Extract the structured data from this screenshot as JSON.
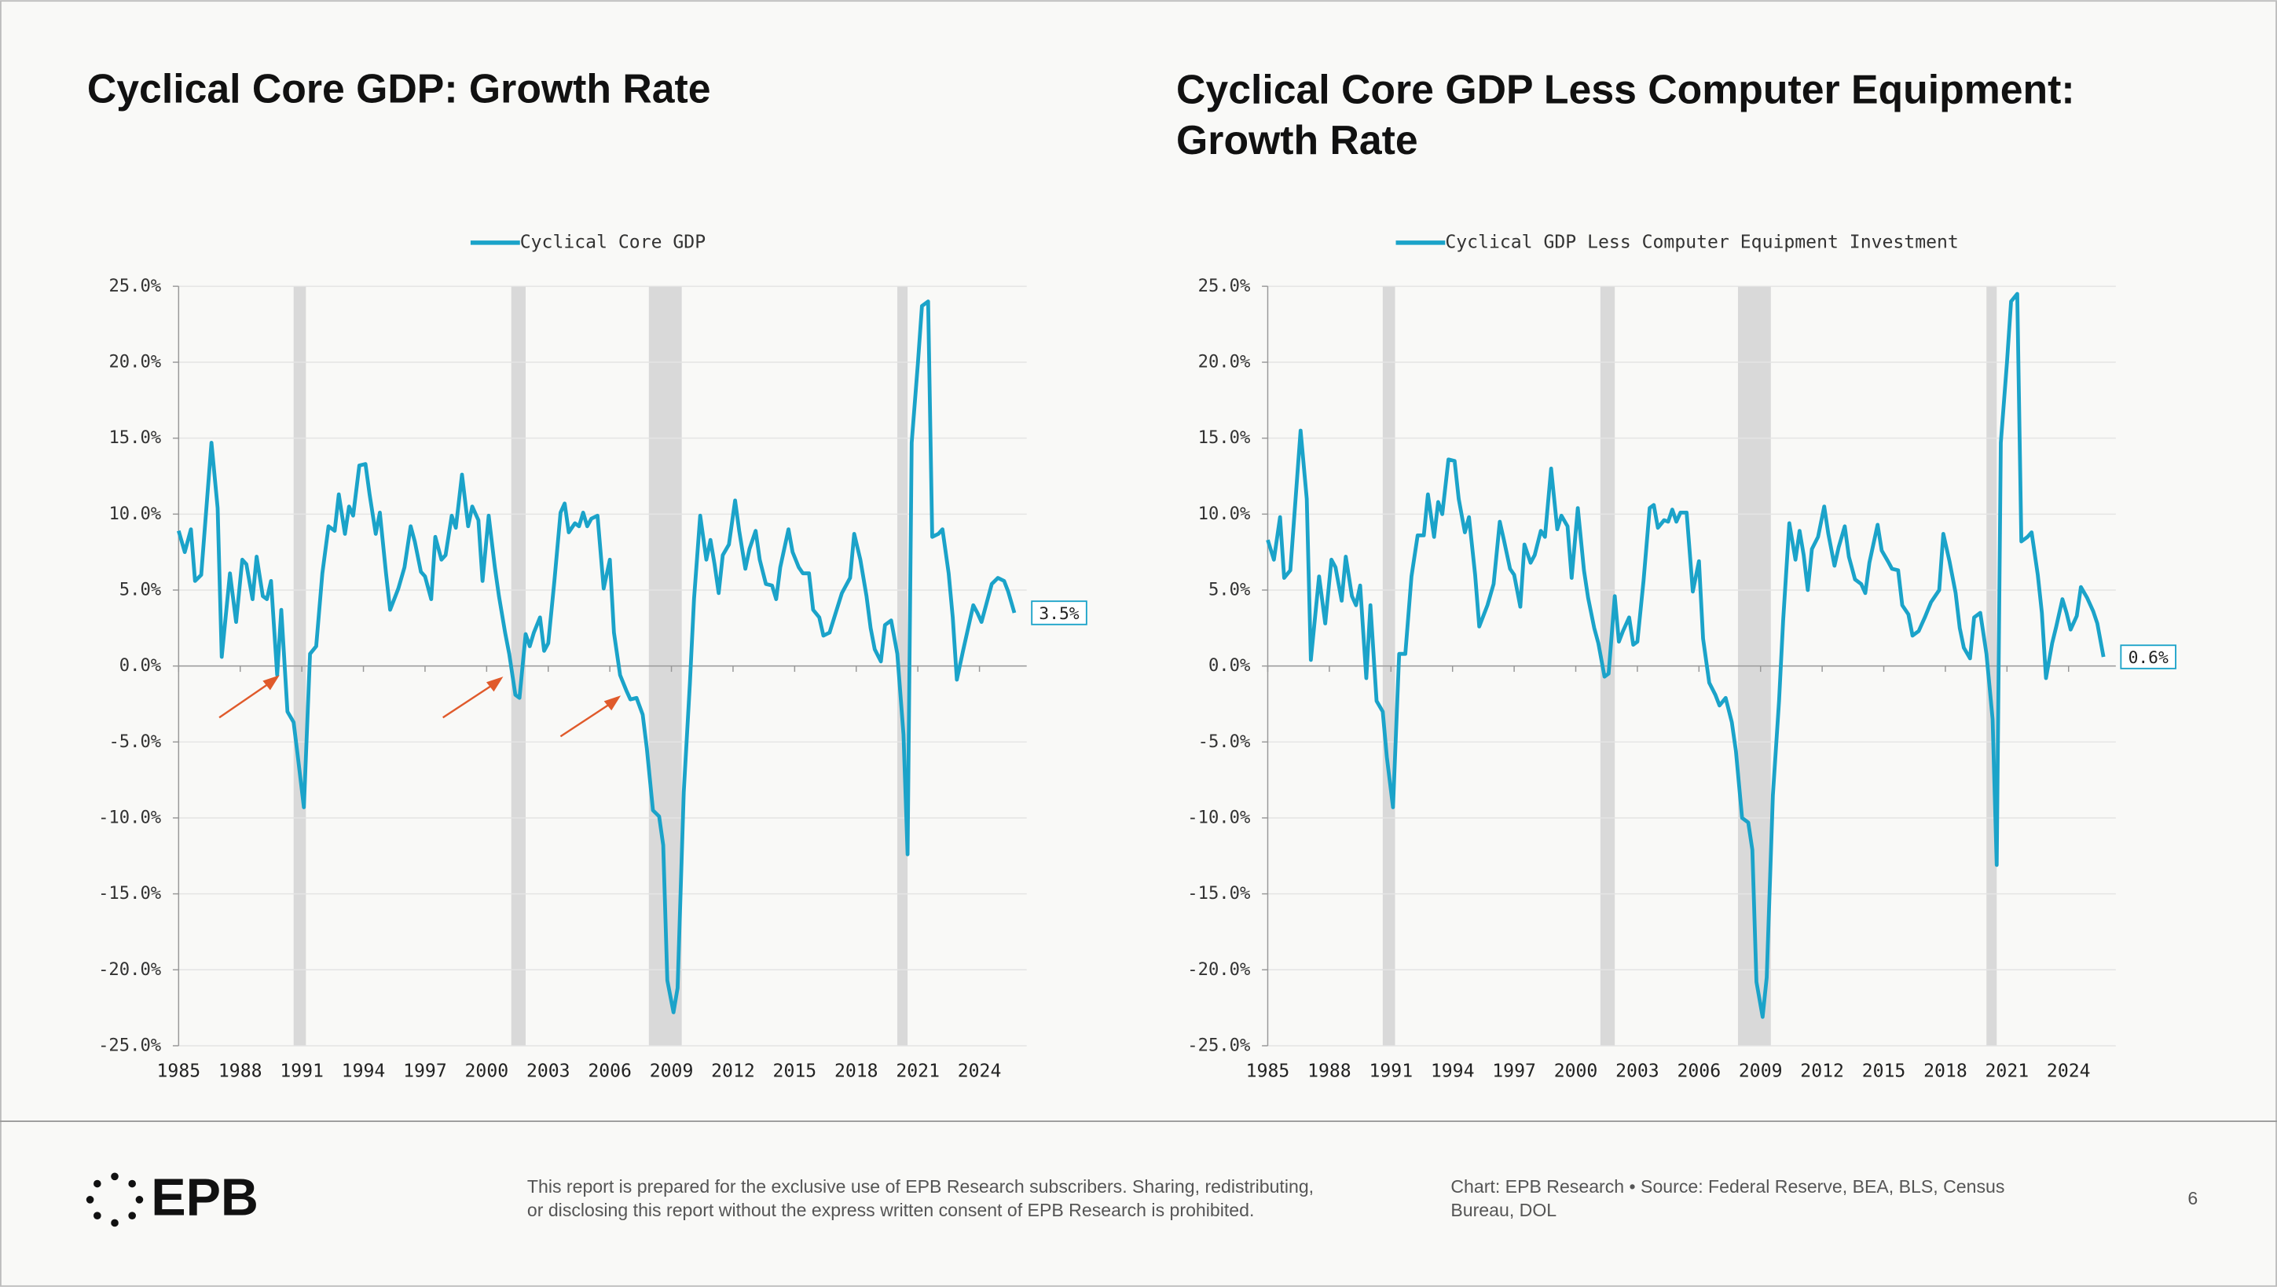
{
  "chart_data": [
    {
      "type": "line",
      "title": "Cyclical Core GDP: Growth Rate",
      "x": [
        1985.0,
        1985.3,
        1985.6,
        1985.8,
        1986.1,
        1986.6,
        1986.9,
        1987.1,
        1987.5,
        1987.8,
        1988.1,
        1988.3,
        1988.6,
        1988.8,
        1989.1,
        1989.3,
        1989.5,
        1989.8,
        1990.0,
        1990.3,
        1990.6,
        1990.8,
        1991.1,
        1991.4,
        1991.7,
        1992.0,
        1992.3,
        1992.6,
        1992.8,
        1993.1,
        1993.3,
        1993.5,
        1993.8,
        1994.1,
        1994.3,
        1994.6,
        1994.8,
        1995.1,
        1995.3,
        1995.7,
        1996.0,
        1996.3,
        1996.5,
        1996.8,
        1997.0,
        1997.3,
        1997.5,
        1997.8,
        1998.0,
        1998.3,
        1998.5,
        1998.8,
        1999.1,
        1999.3,
        1999.6,
        1999.8,
        2000.1,
        2000.4,
        2000.6,
        2000.9,
        2001.1,
        2001.4,
        2001.6,
        2001.9,
        2002.1,
        2002.3,
        2002.6,
        2002.8,
        2003.0,
        2003.3,
        2003.6,
        2003.8,
        2004.0,
        2004.3,
        2004.5,
        2004.7,
        2004.9,
        2005.1,
        2005.4,
        2005.7,
        2006.0,
        2006.2,
        2006.5,
        2006.8,
        2007.0,
        2007.3,
        2007.6,
        2007.8,
        2008.1,
        2008.4,
        2008.6,
        2008.8,
        2009.1,
        2009.3,
        2009.6,
        2009.9,
        2010.1,
        2010.4,
        2010.7,
        2010.9,
        2011.1,
        2011.3,
        2011.5,
        2011.8,
        2012.1,
        2012.3,
        2012.6,
        2012.8,
        2013.1,
        2013.3,
        2013.6,
        2013.9,
        2014.1,
        2014.3,
        2014.7,
        2014.9,
        2015.2,
        2015.4,
        2015.7,
        2015.9,
        2016.2,
        2016.4,
        2016.7,
        2017.0,
        2017.3,
        2017.7,
        2017.9,
        2018.2,
        2018.5,
        2018.7,
        2018.9,
        2019.2,
        2019.4,
        2019.7,
        2020.0,
        2020.3,
        2020.5,
        2020.7,
        2021.0,
        2021.2,
        2021.5,
        2021.7,
        2022.0,
        2022.2,
        2022.5,
        2022.7,
        2022.9,
        2023.2,
        2023.4,
        2023.7,
        2023.9,
        2024.1,
        2024.4,
        2024.6,
        2024.9,
        2025.2,
        2025.4,
        2025.7
      ],
      "series": [
        {
          "name": "Cyclical Core GDP",
          "color": "#1ba3c9",
          "end_label": "3.5%",
          "values": [
            8.9,
            7.5,
            9.0,
            5.6,
            6.0,
            14.7,
            10.4,
            0.6,
            6.1,
            2.9,
            7.0,
            6.7,
            4.4,
            7.2,
            4.6,
            4.4,
            5.6,
            -0.6,
            3.7,
            -3.0,
            -3.7,
            -5.9,
            -9.3,
            0.8,
            1.3,
            6.1,
            9.2,
            8.9,
            11.3,
            8.7,
            10.5,
            9.9,
            13.2,
            13.3,
            11.3,
            8.7,
            10.1,
            6.1,
            3.7,
            5.1,
            6.5,
            9.2,
            8.2,
            6.2,
            5.9,
            4.4,
            8.5,
            7.0,
            7.3,
            9.9,
            9.1,
            12.6,
            9.2,
            10.5,
            9.6,
            5.6,
            9.9,
            6.5,
            4.6,
            2.2,
            0.8,
            -1.9,
            -2.1,
            2.1,
            1.3,
            2.2,
            3.2,
            1.0,
            1.5,
            5.6,
            10.1,
            10.7,
            8.8,
            9.4,
            9.2,
            10.1,
            9.2,
            9.7,
            9.9,
            5.1,
            7.0,
            2.2,
            -0.6,
            -1.6,
            -2.2,
            -2.1,
            -3.2,
            -5.4,
            -9.5,
            -9.9,
            -11.8,
            -20.7,
            -22.8,
            -21.2,
            -8.3,
            -1.1,
            4.4,
            9.9,
            7.0,
            8.3,
            6.7,
            4.8,
            7.3,
            8.0,
            10.9,
            8.9,
            6.4,
            7.7,
            8.9,
            7.0,
            5.4,
            5.3,
            4.4,
            6.5,
            9.0,
            7.5,
            6.5,
            6.1,
            6.1,
            3.7,
            3.2,
            2.0,
            2.2,
            3.5,
            4.8,
            5.8,
            8.7,
            7.0,
            4.6,
            2.5,
            1.1,
            0.3,
            2.7,
            3.0,
            0.8,
            -4.5,
            -12.4,
            14.7,
            19.9,
            23.7,
            24.0,
            8.5,
            8.7,
            9.0,
            6.1,
            3.2,
            -0.9,
            1.0,
            2.2,
            4.0,
            3.5,
            2.9,
            4.4,
            5.4,
            5.8,
            5.6,
            4.9,
            3.5
          ]
        }
      ],
      "xlim": [
        1985,
        2026.3
      ],
      "xticks": [
        1985,
        1988,
        1991,
        1994,
        1997,
        2000,
        2003,
        2006,
        2009,
        2012,
        2015,
        2018,
        2021,
        2024
      ],
      "ylim": [
        -25,
        25
      ],
      "yticks": [
        {
          "value": -25,
          "label": "-25.0%"
        },
        {
          "value": -20,
          "label": "-20.0%"
        },
        {
          "value": -15,
          "label": "-15.0%"
        },
        {
          "value": -10,
          "label": "-10.0%"
        },
        {
          "value": -5,
          "label": "-5.0%"
        },
        {
          "value": 0,
          "label": "0.0%"
        },
        {
          "value": 5,
          "label": "5.0%"
        },
        {
          "value": 10,
          "label": "10.0%"
        },
        {
          "value": 15,
          "label": "15.0%"
        },
        {
          "value": 20,
          "label": "20.0%"
        },
        {
          "value": 25,
          "label": "25.0%"
        }
      ],
      "grid": true,
      "recessions": [
        [
          1990.6,
          1991.2
        ],
        [
          2001.2,
          2001.9
        ],
        [
          2007.9,
          2009.5
        ],
        [
          2020.0,
          2020.5
        ]
      ]
    },
    {
      "type": "line",
      "title": "Cyclical Core GDP Less Computer Equipment: Growth Rate",
      "x": [
        1985.0,
        1985.3,
        1985.6,
        1985.8,
        1986.1,
        1986.6,
        1986.9,
        1987.1,
        1987.5,
        1987.8,
        1988.1,
        1988.3,
        1988.6,
        1988.8,
        1989.1,
        1989.3,
        1989.5,
        1989.8,
        1990.0,
        1990.3,
        1990.6,
        1990.8,
        1991.1,
        1991.4,
        1991.7,
        1992.0,
        1992.3,
        1992.6,
        1992.8,
        1993.1,
        1993.3,
        1993.5,
        1993.8,
        1994.1,
        1994.3,
        1994.6,
        1994.8,
        1995.1,
        1995.3,
        1995.7,
        1996.0,
        1996.3,
        1996.5,
        1996.8,
        1997.0,
        1997.3,
        1997.5,
        1997.8,
        1998.0,
        1998.3,
        1998.5,
        1998.8,
        1999.1,
        1999.3,
        1999.6,
        1999.8,
        2000.1,
        2000.4,
        2000.6,
        2000.9,
        2001.1,
        2001.4,
        2001.6,
        2001.9,
        2002.1,
        2002.3,
        2002.6,
        2002.8,
        2003.0,
        2003.3,
        2003.6,
        2003.8,
        2004.0,
        2004.3,
        2004.5,
        2004.7,
        2004.9,
        2005.1,
        2005.4,
        2005.7,
        2006.0,
        2006.2,
        2006.5,
        2006.8,
        2007.0,
        2007.3,
        2007.6,
        2007.8,
        2008.1,
        2008.4,
        2008.6,
        2008.8,
        2009.1,
        2009.3,
        2009.6,
        2009.9,
        2010.1,
        2010.4,
        2010.7,
        2010.9,
        2011.1,
        2011.3,
        2011.5,
        2011.8,
        2012.1,
        2012.3,
        2012.6,
        2012.8,
        2013.1,
        2013.3,
        2013.6,
        2013.9,
        2014.1,
        2014.3,
        2014.7,
        2014.9,
        2015.2,
        2015.4,
        2015.7,
        2015.9,
        2016.2,
        2016.4,
        2016.7,
        2017.0,
        2017.3,
        2017.7,
        2017.9,
        2018.2,
        2018.5,
        2018.7,
        2018.9,
        2019.2,
        2019.4,
        2019.7,
        2020.0,
        2020.3,
        2020.5,
        2020.7,
        2021.0,
        2021.2,
        2021.5,
        2021.7,
        2022.0,
        2022.2,
        2022.5,
        2022.7,
        2022.9,
        2023.2,
        2023.4,
        2023.7,
        2023.9,
        2024.1,
        2024.4,
        2024.6,
        2024.9,
        2025.2,
        2025.4,
        2025.7
      ],
      "series": [
        {
          "name": "Cyclical GDP Less Computer Equipment Investment",
          "color": "#1ba3c9",
          "end_label": "0.6%",
          "values": [
            8.3,
            7.0,
            9.8,
            5.8,
            6.3,
            15.5,
            11.0,
            0.4,
            5.9,
            2.8,
            7.0,
            6.5,
            4.3,
            7.2,
            4.6,
            4.0,
            5.3,
            -0.8,
            4.0,
            -2.3,
            -3.0,
            -6.0,
            -9.3,
            0.8,
            0.8,
            5.9,
            8.6,
            8.6,
            11.3,
            8.5,
            10.8,
            10.0,
            13.6,
            13.5,
            11.0,
            8.8,
            9.8,
            6.0,
            2.6,
            4.0,
            5.4,
            9.5,
            8.3,
            6.4,
            6.0,
            3.9,
            8.0,
            6.8,
            7.3,
            8.9,
            8.5,
            13.0,
            9.0,
            9.9,
            9.2,
            5.8,
            10.4,
            6.3,
            4.5,
            2.5,
            1.5,
            -0.7,
            -0.5,
            4.6,
            1.6,
            2.3,
            3.2,
            1.4,
            1.6,
            5.6,
            10.4,
            10.6,
            9.1,
            9.6,
            9.5,
            10.3,
            9.5,
            10.1,
            10.1,
            4.9,
            6.9,
            1.8,
            -1.1,
            -1.9,
            -2.6,
            -2.1,
            -3.7,
            -5.6,
            -10.0,
            -10.3,
            -12.1,
            -20.8,
            -23.1,
            -20.5,
            -8.5,
            -2.3,
            3.0,
            9.4,
            7.0,
            8.9,
            7.3,
            5.0,
            7.7,
            8.5,
            10.5,
            8.7,
            6.6,
            7.8,
            9.2,
            7.2,
            5.7,
            5.4,
            4.8,
            6.8,
            9.3,
            7.6,
            6.9,
            6.4,
            6.3,
            4.0,
            3.4,
            2.0,
            2.3,
            3.2,
            4.2,
            5.0,
            8.7,
            6.9,
            4.8,
            2.5,
            1.2,
            0.5,
            3.2,
            3.5,
            0.8,
            -3.5,
            -13.1,
            14.7,
            20.0,
            24.0,
            24.5,
            8.2,
            8.5,
            8.8,
            6.0,
            3.5,
            -0.8,
            1.5,
            2.6,
            4.4,
            3.5,
            2.4,
            3.3,
            5.2,
            4.5,
            3.6,
            2.8,
            0.6
          ]
        }
      ],
      "xlim": [
        1985,
        2026.3
      ],
      "xticks": [
        1985,
        1988,
        1991,
        1994,
        1997,
        2000,
        2003,
        2006,
        2009,
        2012,
        2015,
        2018,
        2021,
        2024
      ],
      "ylim": [
        -25,
        25
      ],
      "yticks": [
        {
          "value": -25,
          "label": "-25.0%"
        },
        {
          "value": -20,
          "label": "-20.0%"
        },
        {
          "value": -15,
          "label": "-15.0%"
        },
        {
          "value": -10,
          "label": "-10.0%"
        },
        {
          "value": -5,
          "label": "-5.0%"
        },
        {
          "value": 0,
          "label": "0.0%"
        },
        {
          "value": 5,
          "label": "5.0%"
        },
        {
          "value": 10,
          "label": "10.0%"
        },
        {
          "value": 15,
          "label": "15.0%"
        },
        {
          "value": 20,
          "label": "20.0%"
        },
        {
          "value": 25,
          "label": "25.0%"
        }
      ],
      "grid": true,
      "recessions": [
        [
          1990.6,
          1991.2
        ],
        [
          2001.2,
          2001.9
        ],
        [
          2007.9,
          2009.5
        ],
        [
          2020.0,
          2020.5
        ]
      ]
    }
  ],
  "footer": {
    "logo": "EPB",
    "disclaimer": [
      "This report is prepared for the exclusive use of EPB Research subscribers. Sharing, redistributing,",
      "or disclosing this report without the express written consent of EPB Research is prohibited."
    ],
    "source": [
      "Chart: EPB Research  •  Source: Federal Reserve, BEA, BLS, Census",
      "Bureau, DOL"
    ],
    "page": "6"
  }
}
